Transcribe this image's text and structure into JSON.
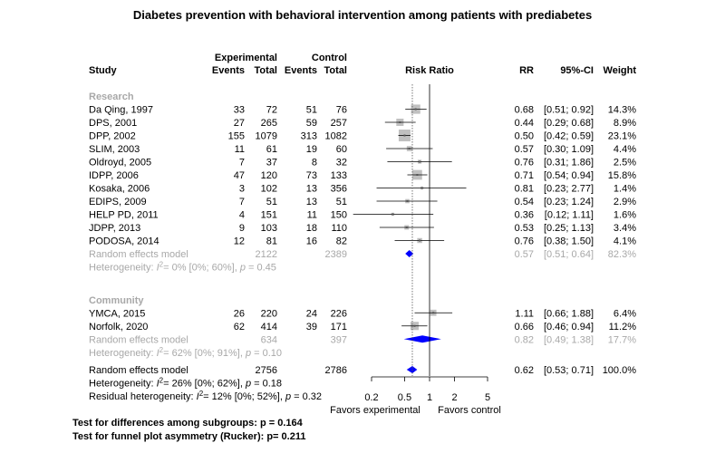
{
  "colors": {
    "box": "#c0c0c0",
    "diamond": "#0000ff",
    "summary_text": "#a8a8a8"
  },
  "chart_data": {
    "type": "forest",
    "title": "Diabetes prevention with behavioral intervention among patients with prediabetes",
    "headers": {
      "experimental": "Experimental",
      "control": "Control",
      "study": "Study",
      "events": "Events",
      "total": "Total",
      "effect": "Risk Ratio",
      "rr": "RR",
      "ci": "95%-CI",
      "weight": "Weight"
    },
    "x_scale": "log",
    "x_ticks": [
      "0.2",
      "0.5",
      "1",
      "2",
      "5"
    ],
    "x_range": [
      0.2,
      5
    ],
    "reference_line": 1,
    "favors": {
      "left": "Favors experimental",
      "right": "Favors control"
    },
    "subgroups": [
      {
        "label": "Research",
        "studies": [
          {
            "study": "Da Qing, 1997",
            "e_events": "33",
            "e_total": "72",
            "c_events": "51",
            "c_total": "76",
            "rr": 0.68,
            "lo": 0.51,
            "hi": 0.92,
            "rr_text": "0.68",
            "ci_text": "[0.51; 0.92]",
            "weight": 14.3,
            "weight_text": "14.3%"
          },
          {
            "study": "DPS, 2001",
            "e_events": "27",
            "e_total": "265",
            "c_events": "59",
            "c_total": "257",
            "rr": 0.44,
            "lo": 0.29,
            "hi": 0.68,
            "rr_text": "0.44",
            "ci_text": "[0.29; 0.68]",
            "weight": 8.9,
            "weight_text": "8.9%"
          },
          {
            "study": "DPP, 2002",
            "e_events": "155",
            "e_total": "1079",
            "c_events": "313",
            "c_total": "1082",
            "rr": 0.5,
            "lo": 0.42,
            "hi": 0.59,
            "rr_text": "0.50",
            "ci_text": "[0.42; 0.59]",
            "weight": 23.1,
            "weight_text": "23.1%"
          },
          {
            "study": "SLIM, 2003",
            "e_events": "11",
            "e_total": "61",
            "c_events": "19",
            "c_total": "60",
            "rr": 0.57,
            "lo": 0.3,
            "hi": 1.09,
            "rr_text": "0.57",
            "ci_text": "[0.30; 1.09]",
            "weight": 4.4,
            "weight_text": "4.4%"
          },
          {
            "study": "Oldroyd, 2005",
            "e_events": "7",
            "e_total": "37",
            "c_events": "8",
            "c_total": "32",
            "rr": 0.76,
            "lo": 0.31,
            "hi": 1.86,
            "rr_text": "0.76",
            "ci_text": "[0.31; 1.86]",
            "weight": 2.5,
            "weight_text": "2.5%"
          },
          {
            "study": "IDPP, 2006",
            "e_events": "47",
            "e_total": "120",
            "c_events": "73",
            "c_total": "133",
            "rr": 0.71,
            "lo": 0.54,
            "hi": 0.94,
            "rr_text": "0.71",
            "ci_text": "[0.54; 0.94]",
            "weight": 15.8,
            "weight_text": "15.8%"
          },
          {
            "study": "Kosaka, 2006",
            "e_events": "3",
            "e_total": "102",
            "c_events": "13",
            "c_total": "356",
            "rr": 0.81,
            "lo": 0.23,
            "hi": 2.77,
            "rr_text": "0.81",
            "ci_text": "[0.23; 2.77]",
            "weight": 1.4,
            "weight_text": "1.4%"
          },
          {
            "study": "EDIPS, 2009",
            "e_events": "7",
            "e_total": "51",
            "c_events": "13",
            "c_total": "51",
            "rr": 0.54,
            "lo": 0.23,
            "hi": 1.24,
            "rr_text": "0.54",
            "ci_text": "[0.23; 1.24]",
            "weight": 2.9,
            "weight_text": "2.9%"
          },
          {
            "study": "HELP PD, 2011",
            "e_events": "4",
            "e_total": "151",
            "c_events": "11",
            "c_total": "150",
            "rr": 0.36,
            "lo": 0.12,
            "hi": 1.11,
            "rr_text": "0.36",
            "ci_text": "[0.12; 1.11]",
            "weight": 1.6,
            "weight_text": "1.6%"
          },
          {
            "study": "JDPP, 2013",
            "e_events": "9",
            "e_total": "103",
            "c_events": "18",
            "c_total": "110",
            "rr": 0.53,
            "lo": 0.25,
            "hi": 1.13,
            "rr_text": "0.53",
            "ci_text": "[0.25; 1.13]",
            "weight": 3.4,
            "weight_text": "3.4%"
          },
          {
            "study": "PODOSA, 2014",
            "e_events": "12",
            "e_total": "81",
            "c_events": "16",
            "c_total": "82",
            "rr": 0.76,
            "lo": 0.38,
            "hi": 1.5,
            "rr_text": "0.76",
            "ci_text": "[0.38; 1.50]",
            "weight": 4.1,
            "weight_text": "4.1%"
          }
        ],
        "pooled": {
          "label": "Random effects model",
          "e_total": "2122",
          "c_total": "2389",
          "rr": 0.57,
          "lo": 0.51,
          "hi": 0.64,
          "rr_text": "0.57",
          "ci_text": "[0.51; 0.64]",
          "weight_text": "82.3%"
        },
        "heterogeneity": {
          "prefix": "Heterogeneity: ",
          "i2": "= 0% [0%; 60%], ",
          "p": "= 0.45"
        }
      },
      {
        "label": "Community",
        "studies": [
          {
            "study": "YMCA, 2015",
            "e_events": "26",
            "e_total": "220",
            "c_events": "24",
            "c_total": "226",
            "rr": 1.11,
            "lo": 0.66,
            "hi": 1.88,
            "rr_text": "1.11",
            "ci_text": "[0.66; 1.88]",
            "weight": 6.4,
            "weight_text": "6.4%"
          },
          {
            "study": "Norfolk, 2020",
            "e_events": "62",
            "e_total": "414",
            "c_events": "39",
            "c_total": "171",
            "rr": 0.66,
            "lo": 0.46,
            "hi": 0.94,
            "rr_text": "0.66",
            "ci_text": "[0.46; 0.94]",
            "weight": 11.2,
            "weight_text": "11.2%"
          }
        ],
        "pooled": {
          "label": "Random effects model",
          "e_total": "634",
          "c_total": "397",
          "rr": 0.82,
          "lo": 0.49,
          "hi": 1.38,
          "rr_text": "0.82",
          "ci_text": "[0.49; 1.38]",
          "weight_text": "17.7%"
        },
        "heterogeneity": {
          "prefix": "Heterogeneity: ",
          "i2": "= 62% [0%; 91%], ",
          "p": "= 0.10"
        }
      }
    ],
    "overall": {
      "label": "Random effects model",
      "e_total": "2756",
      "c_total": "2786",
      "rr": 0.62,
      "lo": 0.53,
      "hi": 0.71,
      "rr_text": "0.62",
      "ci_text": "[0.53; 0.71]",
      "weight_text": "100.0%"
    },
    "overall_heterogeneity": {
      "prefix": "Heterogeneity: ",
      "i2": "= 26% [0%; 62%], ",
      "p": "= 0.18"
    },
    "residual_heterogeneity": {
      "prefix": "Residual heterogeneity: ",
      "i2": "= 12% [0%; 52%], ",
      "p": "= 0.32"
    },
    "tests": [
      "Test for differences among subgroups: p = 0.164",
      "Test for funnel plot asymmetry (Rucker): p= 0.211"
    ]
  }
}
